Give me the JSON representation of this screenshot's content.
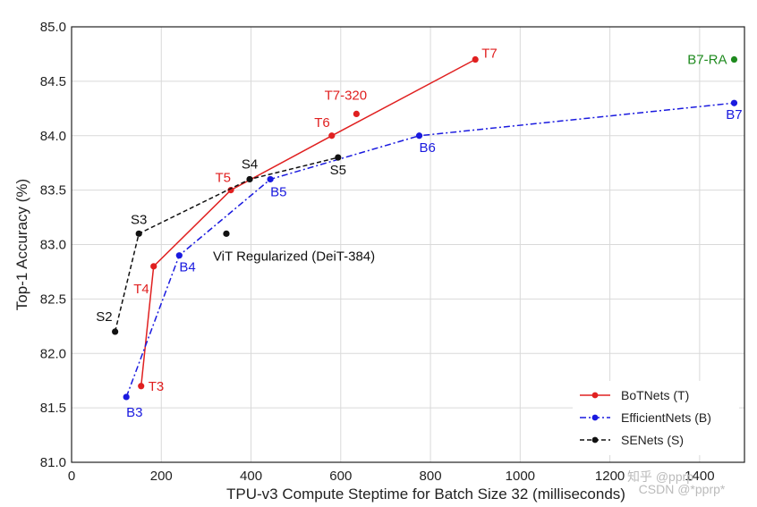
{
  "chart_data": {
    "type": "line",
    "xlabel": "TPU-v3 Compute Steptime for Batch Size 32 (milliseconds)",
    "ylabel": "Top-1 Accuracy (%)",
    "xlim": [
      0,
      1500
    ],
    "ylim": [
      81.0,
      85.0
    ],
    "xticks": [
      0,
      200,
      400,
      600,
      800,
      1000,
      1200,
      1400
    ],
    "yticks": [
      81.0,
      81.5,
      82.0,
      82.5,
      83.0,
      83.5,
      84.0,
      84.5,
      85.0
    ],
    "ytick_labels": [
      "81.0",
      "81.5",
      "82.0",
      "82.5",
      "83.0",
      "83.5",
      "84.0",
      "84.5",
      "85.0"
    ],
    "grid": true,
    "legend_position": "bottom-right",
    "series": [
      {
        "name": "BoTNets (T)",
        "color": "#e02020",
        "line_style": "solid",
        "points": [
          {
            "x": 155,
            "y": 81.7,
            "label": "T3"
          },
          {
            "x": 183,
            "y": 82.8,
            "label": "T4"
          },
          {
            "x": 355,
            "y": 83.5,
            "label": "T5"
          },
          {
            "x": 580,
            "y": 84.0,
            "label": "T6"
          },
          {
            "x": 900,
            "y": 84.7,
            "label": "T7"
          }
        ]
      },
      {
        "name": "EfficientNets (B)",
        "color": "#1a1adf",
        "line_style": "dashdot",
        "points": [
          {
            "x": 122,
            "y": 81.6,
            "label": "B3"
          },
          {
            "x": 240,
            "y": 82.9,
            "label": "B4"
          },
          {
            "x": 443,
            "y": 83.6,
            "label": "B5"
          },
          {
            "x": 775,
            "y": 84.0,
            "label": "B6"
          },
          {
            "x": 1477,
            "y": 84.3,
            "label": "B7"
          }
        ]
      },
      {
        "name": "SENets (S)",
        "color": "#111111",
        "line_style": "dashed",
        "points": [
          {
            "x": 97,
            "y": 82.2,
            "label": "S2"
          },
          {
            "x": 150,
            "y": 83.1,
            "label": "S3"
          },
          {
            "x": 397,
            "y": 83.6,
            "label": "S4"
          },
          {
            "x": 594,
            "y": 83.8,
            "label": "S5"
          }
        ]
      }
    ],
    "extra_points": [
      {
        "x": 635,
        "y": 84.2,
        "label": "T7-320",
        "color": "#e02020"
      },
      {
        "x": 345,
        "y": 83.1,
        "label": "ViT Regularized (DeiT-384)",
        "color": "#111111"
      },
      {
        "x": 1477,
        "y": 84.7,
        "label": "B7-RA",
        "color": "#1e8a1e"
      }
    ],
    "watermark": "知乎 @pprp\nCSDN @*pprp*"
  }
}
